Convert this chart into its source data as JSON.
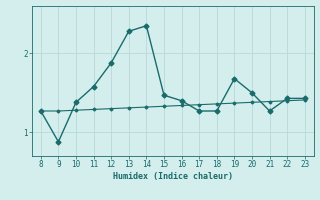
{
  "x": [
    8,
    9,
    10,
    11,
    12,
    13,
    14,
    15,
    16,
    17,
    18,
    19,
    20,
    21,
    22,
    23
  ],
  "y_line": [
    1.27,
    1.27,
    1.28,
    1.29,
    1.3,
    1.31,
    1.32,
    1.33,
    1.34,
    1.35,
    1.36,
    1.37,
    1.38,
    1.39,
    1.4,
    1.41
  ],
  "y_curve": [
    1.27,
    0.88,
    1.38,
    1.58,
    1.88,
    2.28,
    2.35,
    1.47,
    1.4,
    1.27,
    1.27,
    1.68,
    1.5,
    1.27,
    1.43,
    1.43
  ],
  "xlabel": "Humidex (Indice chaleur)",
  "bg_color": "#d4eeed",
  "line_color": "#1a6b6b",
  "grid_color": "#b8d8d8",
  "xlim": [
    7.5,
    23.5
  ],
  "ylim": [
    0.7,
    2.6
  ],
  "yticks": [
    1,
    2
  ],
  "xticks": [
    8,
    9,
    10,
    11,
    12,
    13,
    14,
    15,
    16,
    17,
    18,
    19,
    20,
    21,
    22,
    23
  ]
}
